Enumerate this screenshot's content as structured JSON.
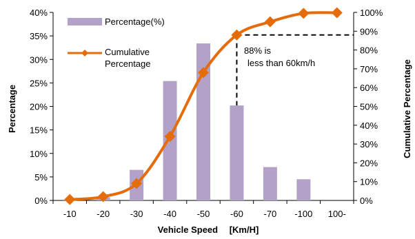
{
  "chart_data": {
    "type": "bar",
    "categories": [
      "-10",
      "-20",
      "-30",
      "-40",
      "-50",
      "-60",
      "-70",
      "-100",
      "100-"
    ],
    "series": [
      {
        "name": "Percentage(%)",
        "type": "bar",
        "axis": "left",
        "color": "#b3a2c7",
        "values": [
          0.2,
          0.7,
          6.5,
          25.4,
          33.4,
          20.2,
          7.1,
          4.5,
          0
        ]
      },
      {
        "name": "Cumulative Percentage",
        "type": "line",
        "axis": "right",
        "color": "#e46c0a",
        "marker": "diamond",
        "values": [
          0.5,
          2,
          9,
          34,
          68,
          88,
          95,
          99.5,
          99.8
        ]
      }
    ],
    "xlabel": "Vehicle Speed 　[Km/H]",
    "ylabel": "Percentage",
    "ylabel_right": "Cumulative Percentage",
    "ylim": [
      0,
      40
    ],
    "ylim_right": [
      0,
      100
    ],
    "yticks": [
      "0%",
      "5%",
      "10%",
      "15%",
      "20%",
      "25%",
      "30%",
      "35%",
      "40%"
    ],
    "yticks_right": [
      "0%",
      "10%",
      "20%",
      "30%",
      "40%",
      "50%",
      "60%",
      "70%",
      "80%",
      "90%",
      "100%"
    ],
    "grid": false,
    "legend_position": "top-left",
    "annotation": {
      "line1": "88% is",
      "line2": "less than 60km/h",
      "category": "-60",
      "value": 88
    }
  }
}
